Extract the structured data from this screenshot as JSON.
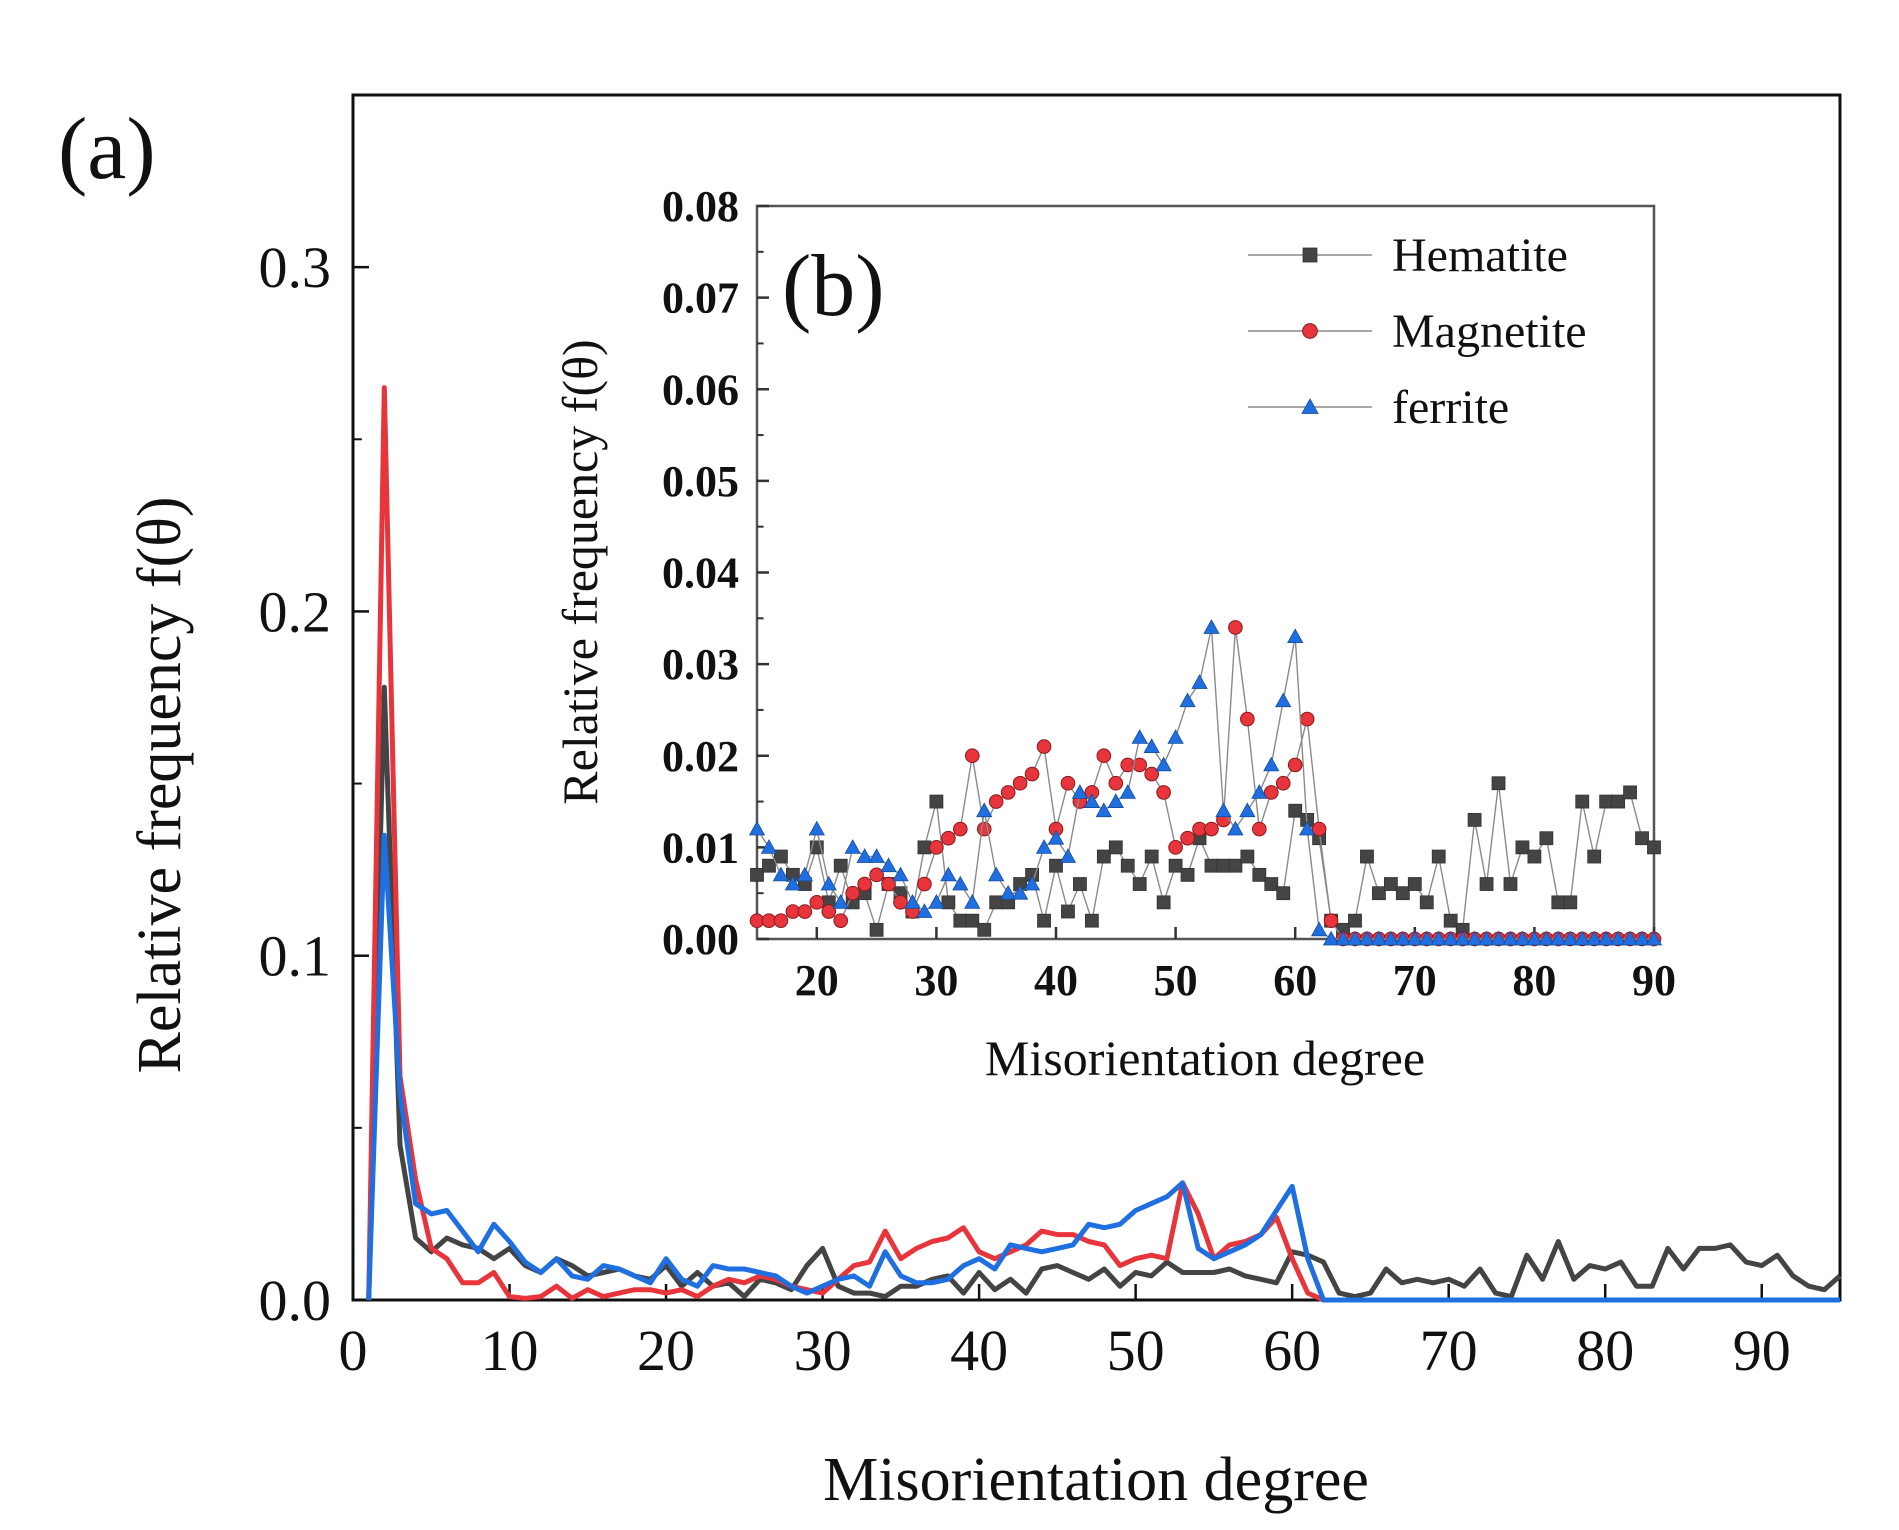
{
  "chart_data": [
    {
      "panel": "(a)",
      "type": "line",
      "xlabel": "Misorientation degree",
      "ylabel": "Relative frequency f(θ)",
      "xlim": [
        0,
        95
      ],
      "ylim": [
        0,
        0.35
      ],
      "xticks": [
        "0",
        "10",
        "20",
        "30",
        "40",
        "50",
        "60",
        "70",
        "80",
        "90"
      ],
      "xtick_values": [
        0,
        10,
        20,
        30,
        40,
        50,
        60,
        70,
        80,
        90
      ],
      "yticks": [
        "0.0",
        "0.1",
        "0.2",
        "0.3"
      ],
      "ytick_values": [
        0,
        0.1,
        0.2,
        0.3
      ],
      "x": [
        1,
        2,
        3,
        4,
        5,
        6,
        7,
        8,
        9,
        10,
        11,
        12,
        13,
        14,
        15,
        16,
        17,
        18,
        19,
        20,
        21,
        22,
        23,
        24,
        25,
        26,
        27,
        28,
        29,
        30,
        31,
        32,
        33,
        34,
        35,
        36,
        37,
        38,
        39,
        40,
        41,
        42,
        43,
        44,
        45,
        46,
        47,
        48,
        49,
        50,
        51,
        52,
        53,
        54,
        55,
        56,
        57,
        58,
        59,
        60,
        61,
        62,
        63,
        64,
        65,
        66,
        67,
        68,
        69,
        70,
        71,
        72,
        73,
        74,
        75,
        76,
        77,
        78,
        79,
        80,
        81,
        82,
        83,
        84,
        85,
        86,
        87,
        88,
        89,
        90,
        91,
        92,
        93,
        94,
        95
      ],
      "series": [
        {
          "color": "#444444",
          "values": [
            0,
            0.178,
            0.045,
            0.018,
            0.014,
            0.018,
            0.016,
            0.015,
            0.012,
            0.015,
            0.01,
            0.008,
            0.012,
            0.01,
            0.007,
            0.008,
            0.009,
            0.007,
            0.006,
            0.01,
            0.004,
            0.008,
            0.004,
            0.005,
            0.001,
            0.006,
            0.005,
            0.003,
            0.01,
            0.015,
            0.004,
            0.002,
            0.002,
            0.001,
            0.004,
            0.004,
            0.006,
            0.007,
            0.002,
            0.008,
            0.003,
            0.006,
            0.002,
            0.009,
            0.01,
            0.008,
            0.006,
            0.009,
            0.004,
            0.008,
            0.007,
            0.011,
            0.008,
            0.008,
            0.008,
            0.009,
            0.007,
            0.006,
            0.005,
            0.014,
            0.013,
            0.011,
            0.002,
            0.001,
            0.002,
            0.009,
            0.005,
            0.006,
            0.005,
            0.006,
            0.004,
            0.009,
            0.002,
            0.001,
            0.013,
            0.006,
            0.017,
            0.006,
            0.01,
            0.009,
            0.011,
            0.004,
            0.004,
            0.015,
            0.009,
            0.015,
            0.015,
            0.016,
            0.011,
            0.01,
            0.013,
            0.007,
            0.004,
            0.003,
            0.007
          ]
        },
        {
          "color": "#e8353c",
          "values": [
            0,
            0.265,
            0.065,
            0.035,
            0.015,
            0.012,
            0.005,
            0.005,
            0.008,
            0.001,
            0.0005,
            0.001,
            0.004,
            0.0005,
            0.003,
            0.001,
            0.002,
            0.003,
            0.003,
            0.002,
            0.003,
            0.001,
            0.004,
            0.006,
            0.005,
            0.007,
            0.006,
            0.004,
            0.003,
            0.002,
            0.006,
            0.01,
            0.011,
            0.02,
            0.012,
            0.015,
            0.017,
            0.018,
            0.021,
            0.014,
            0.012,
            0.014,
            0.016,
            0.02,
            0.019,
            0.019,
            0.017,
            0.016,
            0.01,
            0.012,
            0.013,
            0.012,
            0.034,
            0.025,
            0.012,
            0.016,
            0.017,
            0.019,
            0.024,
            0.012,
            0.002,
            0,
            0,
            0,
            0,
            0,
            0,
            0,
            0,
            0,
            0,
            0,
            0,
            0,
            0,
            0,
            0,
            0,
            0,
            0,
            0,
            0,
            0,
            0,
            0,
            0,
            0,
            0,
            0,
            0,
            0,
            0,
            0,
            0,
            0
          ]
        },
        {
          "color": "#1f6fe0",
          "values": [
            0,
            0.135,
            0.06,
            0.028,
            0.025,
            0.026,
            0.02,
            0.014,
            0.022,
            0.017,
            0.011,
            0.008,
            0.012,
            0.007,
            0.006,
            0.01,
            0.009,
            0.007,
            0.005,
            0.012,
            0.006,
            0.004,
            0.01,
            0.009,
            0.009,
            0.008,
            0.007,
            0.004,
            0.002,
            0.004,
            0.006,
            0.007,
            0.004,
            0.014,
            0.007,
            0.005,
            0.005,
            0.006,
            0.01,
            0.012,
            0.009,
            0.016,
            0.015,
            0.014,
            0.015,
            0.016,
            0.022,
            0.021,
            0.022,
            0.026,
            0.028,
            0.03,
            0.034,
            0.015,
            0.012,
            0.014,
            0.016,
            0.019,
            0.026,
            0.033,
            0.012,
            0,
            0,
            0,
            0,
            0,
            0,
            0,
            0,
            0,
            0,
            0,
            0,
            0,
            0,
            0,
            0,
            0,
            0,
            0,
            0,
            0,
            0,
            0,
            0,
            0,
            0,
            0,
            0,
            0,
            0,
            0,
            0,
            0,
            0
          ]
        }
      ]
    },
    {
      "panel": "(b)",
      "type": "line",
      "xlabel": "Misorientation degree",
      "ylabel": "Relative frequency f(θ)",
      "xlim": [
        15,
        90
      ],
      "ylim": [
        0,
        0.08
      ],
      "xticks": [
        "20",
        "30",
        "40",
        "50",
        "60",
        "70",
        "80",
        "90"
      ],
      "xtick_values": [
        20,
        30,
        40,
        50,
        60,
        70,
        80,
        90
      ],
      "yticks": [
        "0.00",
        "0.01",
        "0.02",
        "0.03",
        "0.04",
        "0.05",
        "0.06",
        "0.07",
        "0.08"
      ],
      "ytick_values": [
        0,
        0.01,
        0.02,
        0.03,
        0.04,
        0.05,
        0.06,
        0.07,
        0.08
      ],
      "legend": {
        "position": "top-right",
        "entries": [
          "Hematite",
          "Magnetite",
          "ferrite"
        ]
      },
      "x": [
        15,
        16,
        17,
        18,
        19,
        20,
        21,
        22,
        23,
        24,
        25,
        26,
        27,
        28,
        29,
        30,
        31,
        32,
        33,
        34,
        35,
        36,
        37,
        38,
        39,
        40,
        41,
        42,
        43,
        44,
        45,
        46,
        47,
        48,
        49,
        50,
        51,
        52,
        53,
        54,
        55,
        56,
        57,
        58,
        59,
        60,
        61,
        62,
        63,
        64,
        65,
        66,
        67,
        68,
        69,
        70,
        71,
        72,
        73,
        74,
        75,
        76,
        77,
        78,
        79,
        80,
        81,
        82,
        83,
        84,
        85,
        86,
        87,
        88,
        89,
        90
      ],
      "series": [
        {
          "name": "Hematite",
          "color": "#444444",
          "marker": "square",
          "values": [
            0.007,
            0.008,
            0.009,
            0.007,
            0.006,
            0.01,
            0.004,
            0.008,
            0.004,
            0.005,
            0.001,
            0.006,
            0.005,
            0.003,
            0.01,
            0.015,
            0.004,
            0.002,
            0.002,
            0.001,
            0.004,
            0.004,
            0.006,
            0.007,
            0.002,
            0.008,
            0.003,
            0.006,
            0.002,
            0.009,
            0.01,
            0.008,
            0.006,
            0.009,
            0.004,
            0.008,
            0.007,
            0.011,
            0.008,
            0.008,
            0.008,
            0.009,
            0.007,
            0.006,
            0.005,
            0.014,
            0.013,
            0.011,
            0.002,
            0.001,
            0.002,
            0.009,
            0.005,
            0.006,
            0.005,
            0.006,
            0.004,
            0.009,
            0.002,
            0.001,
            0.013,
            0.006,
            0.017,
            0.006,
            0.01,
            0.009,
            0.011,
            0.004,
            0.004,
            0.015,
            0.009,
            0.015,
            0.015,
            0.016,
            0.011,
            0.01
          ]
        },
        {
          "name": "Magnetite",
          "color": "#e8353c",
          "marker": "circle",
          "values": [
            0.002,
            0.002,
            0.002,
            0.003,
            0.003,
            0.004,
            0.003,
            0.002,
            0.005,
            0.006,
            0.007,
            0.006,
            0.004,
            0.003,
            0.006,
            0.01,
            0.011,
            0.012,
            0.02,
            0.012,
            0.015,
            0.016,
            0.017,
            0.018,
            0.021,
            0.012,
            0.017,
            0.015,
            0.016,
            0.02,
            0.017,
            0.019,
            0.019,
            0.018,
            0.016,
            0.01,
            0.011,
            0.012,
            0.012,
            0.013,
            0.034,
            0.024,
            0.012,
            0.016,
            0.017,
            0.019,
            0.024,
            0.012,
            0.002,
            0,
            0,
            0,
            0,
            0,
            0,
            0,
            0,
            0,
            0,
            0,
            0,
            0,
            0,
            0,
            0,
            0,
            0,
            0,
            0,
            0,
            0,
            0,
            0,
            0,
            0,
            0
          ]
        },
        {
          "name": "ferrite",
          "color": "#1f6fe0",
          "marker": "triangle",
          "values": [
            0.012,
            0.01,
            0.007,
            0.006,
            0.007,
            0.012,
            0.006,
            0.004,
            0.01,
            0.009,
            0.009,
            0.008,
            0.007,
            0.004,
            0.003,
            0.004,
            0.007,
            0.006,
            0.004,
            0.014,
            0.007,
            0.005,
            0.005,
            0.006,
            0.01,
            0.011,
            0.009,
            0.016,
            0.015,
            0.014,
            0.015,
            0.016,
            0.022,
            0.021,
            0.019,
            0.022,
            0.026,
            0.028,
            0.034,
            0.014,
            0.012,
            0.014,
            0.016,
            0.019,
            0.026,
            0.033,
            0.012,
            0.001,
            0,
            0,
            0,
            0,
            0,
            0,
            0,
            0,
            0,
            0,
            0,
            0,
            0,
            0,
            0,
            0,
            0,
            0,
            0,
            0,
            0,
            0,
            0,
            0,
            0,
            0,
            0,
            0
          ]
        }
      ]
    }
  ]
}
